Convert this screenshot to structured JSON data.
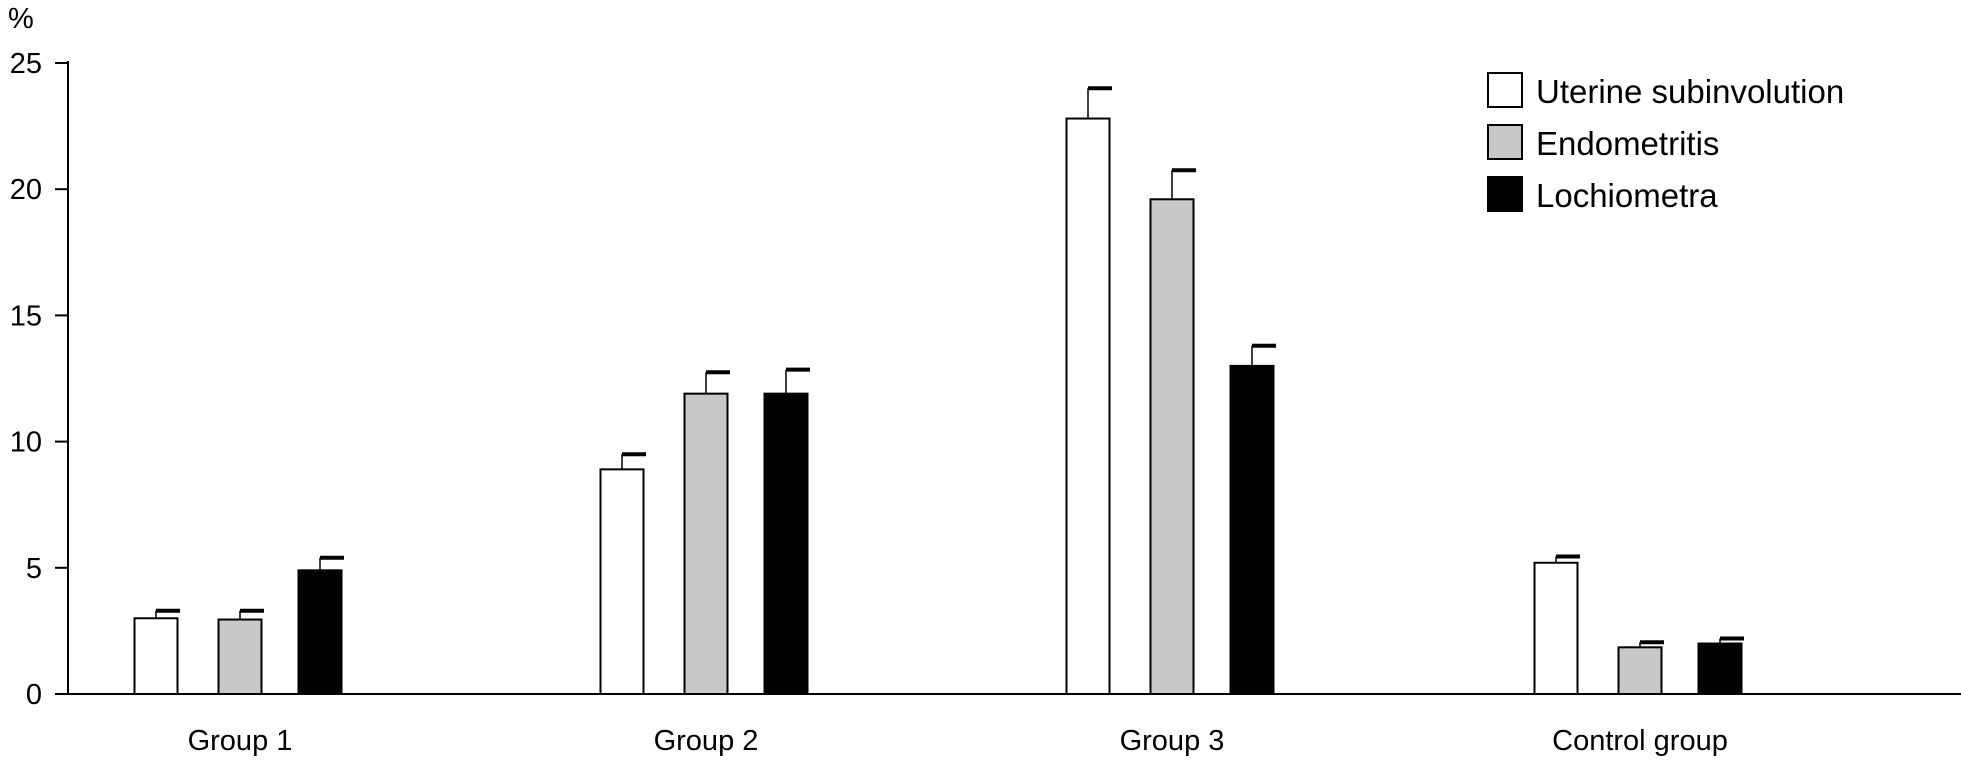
{
  "chart_data": {
    "type": "bar",
    "ylabel": "%",
    "xlabel": "",
    "ylim": [
      0,
      25
    ],
    "yticks": [
      0,
      5,
      10,
      15,
      20,
      25
    ],
    "categories": [
      "Group 1",
      "Group 2",
      "Group 3",
      "Control group"
    ],
    "series": [
      {
        "name": "Uterine subinvolution",
        "color": "#ffffff",
        "values": [
          3.0,
          8.9,
          22.8,
          5.2
        ],
        "error": [
          0.3,
          0.6,
          1.2,
          0.25
        ]
      },
      {
        "name": "Endometritis",
        "color": "#c8c8c8",
        "values": [
          2.95,
          11.9,
          19.6,
          1.85
        ],
        "error": [
          0.35,
          0.85,
          1.15,
          0.2
        ]
      },
      {
        "name": "Lochiometra",
        "color": "#000000",
        "values": [
          4.9,
          11.9,
          13.0,
          2.0
        ],
        "error": [
          0.5,
          0.95,
          0.8,
          0.2
        ]
      }
    ],
    "legend_position": "top-right",
    "grid": false
  }
}
